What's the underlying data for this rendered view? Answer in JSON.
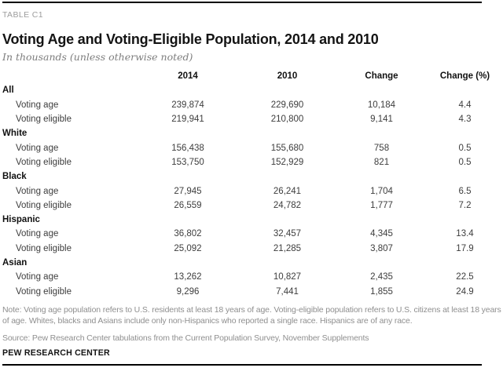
{
  "meta": {
    "table_label": "TABLE C1"
  },
  "header": {
    "title": "Voting Age and Voting-Eligible Population, 2014 and 2010",
    "subtitle": "In thousands (unless otherwise noted)"
  },
  "table": {
    "columns": [
      "2014",
      "2010",
      "Change",
      "Change (%)"
    ],
    "groups": [
      {
        "label": "All",
        "rows": [
          {
            "label": "Voting age",
            "values": [
              "239,874",
              "229,690",
              "10,184",
              "4.4"
            ]
          },
          {
            "label": "Voting eligible",
            "values": [
              "219,941",
              "210,800",
              "9,141",
              "4.3"
            ]
          }
        ]
      },
      {
        "label": "White",
        "rows": [
          {
            "label": "Voting age",
            "values": [
              "156,438",
              "155,680",
              "758",
              "0.5"
            ]
          },
          {
            "label": "Voting eligible",
            "values": [
              "153,750",
              "152,929",
              "821",
              "0.5"
            ]
          }
        ]
      },
      {
        "label": "Black",
        "rows": [
          {
            "label": "Voting age",
            "values": [
              "27,945",
              "26,241",
              "1,704",
              "6.5"
            ]
          },
          {
            "label": "Voting eligible",
            "values": [
              "26,559",
              "24,782",
              "1,777",
              "7.2"
            ]
          }
        ]
      },
      {
        "label": "Hispanic",
        "rows": [
          {
            "label": "Voting age",
            "values": [
              "36,802",
              "32,457",
              "4,345",
              "13.4"
            ]
          },
          {
            "label": "Voting eligible",
            "values": [
              "25,092",
              "21,285",
              "3,807",
              "17.9"
            ]
          }
        ]
      },
      {
        "label": "Asian",
        "rows": [
          {
            "label": "Voting age",
            "values": [
              "13,262",
              "10,827",
              "2,435",
              "22.5"
            ]
          },
          {
            "label": "Voting eligible",
            "values": [
              "9,296",
              "7,441",
              "1,855",
              "24.9"
            ]
          }
        ]
      }
    ]
  },
  "footer": {
    "note_lines": [
      "Note: Voting age population refers to U.S. residents at least 18 years of age. Voting-eligible population refers to U.S. citizens at least 18 years",
      "of age. Whites, blacks and Asians include only non-Hispanics who reported a single race. Hispanics are of any race."
    ],
    "source": "Source: Pew Research Center tabulations from the Current Population Survey, November Supplements",
    "brand": "PEW RESEARCH CENTER"
  },
  "colors": {
    "rule": "#000000",
    "title_text": "#141414",
    "body_text": "#3d3d3d",
    "muted_text": "#8f8f8f",
    "label_text": "#9d9d9d",
    "background": "#ffffff"
  },
  "chart_data": {
    "type": "table",
    "title": "Voting Age and Voting-Eligible Population, 2014 and 2010",
    "units": "thousands (unless otherwise noted)",
    "columns": [
      "2014",
      "2010",
      "Change",
      "Change (%)"
    ],
    "rows": [
      {
        "group": "All",
        "measure": "Voting age",
        "y2014": 239874,
        "y2010": 229690,
        "change": 10184,
        "change_pct": 4.4
      },
      {
        "group": "All",
        "measure": "Voting eligible",
        "y2014": 219941,
        "y2010": 210800,
        "change": 9141,
        "change_pct": 4.3
      },
      {
        "group": "White",
        "measure": "Voting age",
        "y2014": 156438,
        "y2010": 155680,
        "change": 758,
        "change_pct": 0.5
      },
      {
        "group": "White",
        "measure": "Voting eligible",
        "y2014": 153750,
        "y2010": 152929,
        "change": 821,
        "change_pct": 0.5
      },
      {
        "group": "Black",
        "measure": "Voting age",
        "y2014": 27945,
        "y2010": 26241,
        "change": 1704,
        "change_pct": 6.5
      },
      {
        "group": "Black",
        "measure": "Voting eligible",
        "y2014": 26559,
        "y2010": 24782,
        "change": 1777,
        "change_pct": 7.2
      },
      {
        "group": "Hispanic",
        "measure": "Voting age",
        "y2014": 36802,
        "y2010": 32457,
        "change": 4345,
        "change_pct": 13.4
      },
      {
        "group": "Hispanic",
        "measure": "Voting eligible",
        "y2014": 25092,
        "y2010": 21285,
        "change": 3807,
        "change_pct": 17.9
      },
      {
        "group": "Asian",
        "measure": "Voting age",
        "y2014": 13262,
        "y2010": 10827,
        "change": 2435,
        "change_pct": 22.5
      },
      {
        "group": "Asian",
        "measure": "Voting eligible",
        "y2014": 9296,
        "y2010": 7441,
        "change": 1855,
        "change_pct": 24.9
      }
    ]
  }
}
